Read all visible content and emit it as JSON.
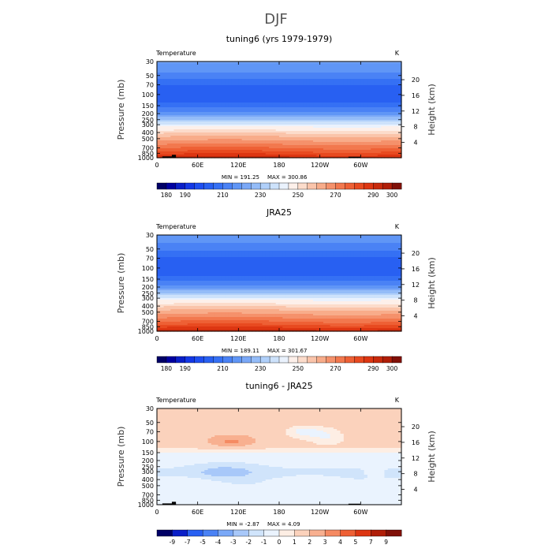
{
  "suptitle": "DJF",
  "chart_data": [
    {
      "type": "heatmap",
      "title": "tuning6 (yrs 1979-1979)",
      "left_label": "Temperature",
      "units": "K",
      "ylabel": "Pressure (mb)",
      "ylabel_right": "Height (km)",
      "x_ticks": [
        "0",
        "60E",
        "120E",
        "180",
        "120W",
        "60W"
      ],
      "x_tick_values": [
        0,
        60,
        120,
        180,
        240,
        300
      ],
      "x_range": [
        0,
        360
      ],
      "pressure_ticks": [
        "30",
        "50",
        "70",
        "100",
        "150",
        "200",
        "250",
        "300",
        "400",
        "500",
        "700",
        "850",
        "1000"
      ],
      "height_ticks": [
        "20",
        "16",
        "12",
        "8",
        "4"
      ],
      "height_values": [
        20,
        16,
        12,
        8,
        4
      ],
      "min_text": "MIN = 191.25",
      "max_text": "MAX = 300.86",
      "min": 191.25,
      "max": 300.86,
      "levels": [
        175,
        180,
        185,
        190,
        195,
        200,
        205,
        210,
        215,
        220,
        225,
        230,
        235,
        240,
        245,
        250,
        255,
        260,
        265,
        270,
        275,
        280,
        285,
        290,
        295,
        300,
        305
      ],
      "colorbar_labels": [
        "180",
        "190",
        "210",
        "230",
        "250",
        "270",
        "290",
        "300"
      ],
      "colorbar_label_values": [
        180,
        190,
        210,
        230,
        250,
        270,
        290,
        300
      ],
      "profile": {
        "pressure": [
          30,
          40,
          50,
          60,
          70,
          85,
          100,
          125,
          150,
          175,
          200,
          225,
          250,
          275,
          300,
          350,
          400,
          450,
          500,
          600,
          700,
          775,
          850,
          925,
          1000
        ],
        "temperature": [
          221,
          217,
          213,
          209,
          205,
          203,
          202,
          203,
          207,
          213,
          218,
          225,
          230,
          236,
          242,
          248,
          254,
          259,
          263,
          269,
          275,
          279,
          283,
          287,
          292
        ]
      },
      "topography": [
        {
          "lon_start": 8,
          "lon_end": 28,
          "pressure": 955
        },
        {
          "lon_start": 22,
          "lon_end": 28,
          "pressure": 900
        },
        {
          "lon_start": 282,
          "lon_end": 300,
          "pressure": 965
        }
      ],
      "colors": {
        "topography": "#000000"
      }
    },
    {
      "type": "heatmap",
      "title": "JRA25",
      "left_label": "Temperature",
      "units": "K",
      "ylabel": "Pressure (mb)",
      "ylabel_right": "Height (km)",
      "x_ticks": [
        "0",
        "60E",
        "120E",
        "180",
        "120W",
        "60W"
      ],
      "x_tick_values": [
        0,
        60,
        120,
        180,
        240,
        300
      ],
      "x_range": [
        0,
        360
      ],
      "pressure_ticks": [
        "30",
        "50",
        "70",
        "100",
        "150",
        "200",
        "250",
        "300",
        "400",
        "500",
        "700",
        "850",
        "1000"
      ],
      "height_ticks": [
        "20",
        "16",
        "12",
        "8",
        "4"
      ],
      "height_values": [
        20,
        16,
        12,
        8,
        4
      ],
      "min_text": "MIN = 189.11",
      "max_text": "MAX = 301.67",
      "min": 189.11,
      "max": 301.67,
      "levels": [
        175,
        180,
        185,
        190,
        195,
        200,
        205,
        210,
        215,
        220,
        225,
        230,
        235,
        240,
        245,
        250,
        255,
        260,
        265,
        270,
        275,
        280,
        285,
        290,
        295,
        300,
        305
      ],
      "colorbar_labels": [
        "180",
        "190",
        "210",
        "230",
        "250",
        "270",
        "290",
        "300"
      ],
      "colorbar_label_values": [
        180,
        190,
        210,
        230,
        250,
        270,
        290,
        300
      ],
      "profile": {
        "pressure": [
          30,
          40,
          50,
          60,
          70,
          85,
          100,
          125,
          150,
          175,
          200,
          225,
          250,
          275,
          300,
          350,
          400,
          450,
          500,
          600,
          700,
          775,
          850,
          925,
          1000
        ],
        "temperature": [
          219,
          215,
          211,
          208,
          204,
          202,
          201,
          203,
          207,
          213,
          218,
          225,
          230,
          236,
          242,
          248,
          254,
          259,
          263,
          269,
          275,
          279,
          284,
          288,
          294
        ]
      },
      "topography": [],
      "colors": {
        "topography": "#000000"
      }
    },
    {
      "type": "heatmap",
      "title": "tuning6 - JRA25",
      "left_label": "Temperature",
      "units": "K",
      "ylabel": "Pressure (mb)",
      "ylabel_right": "Height (km)",
      "x_ticks": [
        "0",
        "60E",
        "120E",
        "180",
        "120W",
        "60W"
      ],
      "x_tick_values": [
        0,
        60,
        120,
        180,
        240,
        300
      ],
      "x_range": [
        0,
        360
      ],
      "pressure_ticks": [
        "30",
        "50",
        "70",
        "100",
        "150",
        "200",
        "250",
        "300",
        "400",
        "500",
        "700",
        "850",
        "1000"
      ],
      "height_ticks": [
        "20",
        "16",
        "12",
        "8",
        "4"
      ],
      "height_values": [
        20,
        16,
        12,
        8,
        4
      ],
      "min_text": "MIN = -2.87",
      "max_text": "MAX = 4.09",
      "min": -2.87,
      "max": 4.09,
      "levels": [
        -11,
        -9,
        -7,
        -5,
        -4,
        -3,
        -2,
        -1,
        0,
        1,
        2,
        3,
        4,
        5,
        7,
        9,
        11
      ],
      "colorbar_labels": [
        "-9",
        "-7",
        "-5",
        "-4",
        "-3",
        "-2",
        "-1",
        "0",
        "1",
        "2",
        "3",
        "4",
        "5",
        "7",
        "9"
      ],
      "colorbar_label_values": [
        -9,
        -7,
        -5,
        -4,
        -3,
        -2,
        -1,
        0,
        1,
        2,
        3,
        4,
        5,
        7,
        9
      ],
      "profile": {
        "pressure": [
          30,
          40,
          50,
          60,
          70,
          85,
          100,
          125,
          150,
          175,
          200,
          225,
          250,
          275,
          300,
          350,
          400,
          450,
          500,
          600,
          700,
          775,
          850,
          925,
          1000
        ],
        "temperature": [
          1.8,
          1.8,
          1.6,
          1.6,
          1.7,
          1.5,
          1.4,
          1.2,
          -0.1,
          -0.4,
          -0.6,
          -0.8,
          -0.9,
          -1.1,
          -1.3,
          -1.1,
          -0.8,
          -0.7,
          -0.6,
          -0.5,
          -0.4,
          -0.4,
          -0.3,
          -0.2,
          -0.2
        ]
      },
      "features": [
        {
          "lon": 110,
          "pressure": 100,
          "amplitude": 1.8,
          "lon_width": 35,
          "logp_width": 0.09
        },
        {
          "lon": 215,
          "pressure": 70,
          "amplitude": -2.0,
          "lon_width": 25,
          "logp_width": 0.09
        },
        {
          "lon": 250,
          "pressure": 80,
          "amplitude": -1.6,
          "lon_width": 25,
          "logp_width": 0.12
        },
        {
          "lon": 100,
          "pressure": 300,
          "amplitude": -1.4,
          "lon_width": 45,
          "logp_width": 0.12
        },
        {
          "lon": 320,
          "pressure": 300,
          "amplitude": 0.6,
          "lon_width": 18,
          "logp_width": 0.1
        }
      ],
      "topography": [
        {
          "lon_start": 8,
          "lon_end": 28,
          "pressure": 955
        },
        {
          "lon_start": 22,
          "lon_end": 28,
          "pressure": 900
        },
        {
          "lon_start": 282,
          "lon_end": 300,
          "pressure": 965
        }
      ],
      "colors": {
        "topography": "#000000"
      }
    }
  ],
  "colormaps": {
    "temperature": [
      "#000066",
      "#0000a0",
      "#0a1fc8",
      "#1438e6",
      "#1e4ef0",
      "#2860f2",
      "#3570f4",
      "#4a82f5",
      "#6096f6",
      "#7aa8f7",
      "#94bcf8",
      "#b0d0fa",
      "#cde2fb",
      "#eaf2fd",
      "#fdf0ea",
      "#fcdccb",
      "#fac4aa",
      "#f8ac8a",
      "#f5916b",
      "#f2784e",
      "#ee6035",
      "#e84a20",
      "#dd3612",
      "#c82a0c",
      "#b01e08",
      "#801008"
    ],
    "difference": [
      "#000066",
      "#0a1fc8",
      "#2860f2",
      "#4a82f5",
      "#7aa8f7",
      "#a8c8f9",
      "#d0e4fb",
      "#eaf3fe",
      "#fdeee4",
      "#fbd2bc",
      "#f8b090",
      "#f58a62",
      "#ee6035",
      "#dd3612",
      "#b01e08",
      "#801008"
    ]
  }
}
